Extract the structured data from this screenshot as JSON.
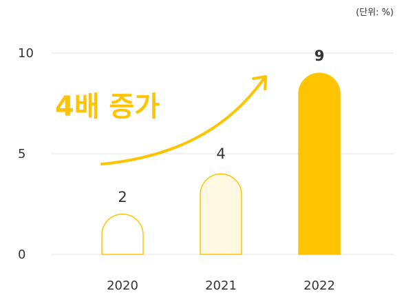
{
  "chart_data": {
    "type": "bar",
    "unit_label": "(단위: %)",
    "categories": [
      "2020",
      "2021",
      "2022"
    ],
    "values": [
      2,
      4,
      9
    ],
    "value_labels": [
      "2",
      "4",
      "9"
    ],
    "ylim": [
      0,
      10
    ],
    "yticks": [
      0,
      5,
      10
    ],
    "ytick_labels": [
      "0",
      "5",
      "10"
    ],
    "annotation": "4배 증가",
    "grid": true
  },
  "colors": {
    "accent": "#ffc400",
    "bar_light_fill": "#ffffff",
    "bar_mid_fill": "#fff8e3",
    "grid": "#e3e3e3",
    "text": "#333333"
  }
}
